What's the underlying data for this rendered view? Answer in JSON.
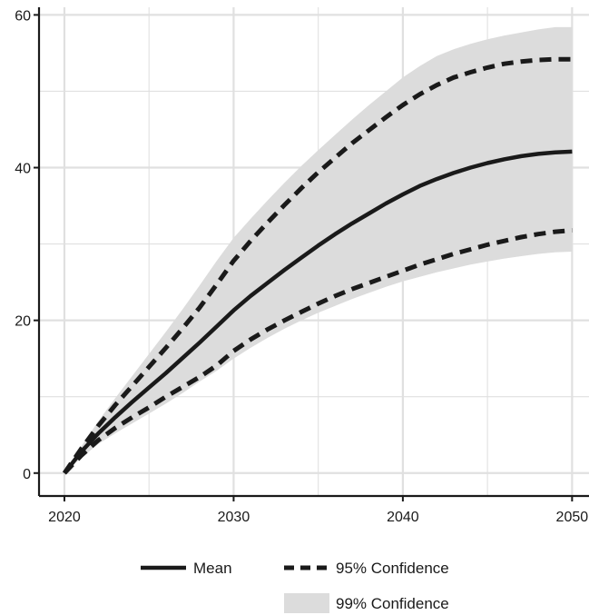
{
  "chart_data": {
    "type": "line",
    "title": "",
    "xlabel": "",
    "ylabel": "",
    "xlim": [
      2018.5,
      2051
    ],
    "ylim": [
      -3,
      61
    ],
    "x_ticks": [
      2020,
      2030,
      2040,
      2050
    ],
    "x_tick_labels": [
      "2020",
      "2030",
      "2040",
      "2050"
    ],
    "y_ticks": [
      0,
      20,
      40,
      60
    ],
    "y_tick_labels": [
      "0",
      "20",
      "40",
      "60"
    ],
    "grid": true,
    "x": [
      2020,
      2021,
      2022,
      2023,
      2024,
      2025,
      2026,
      2027,
      2028,
      2029,
      2030,
      2031,
      2032,
      2033,
      2034,
      2035,
      2036,
      2037,
      2038,
      2039,
      2040,
      2041,
      2042,
      2043,
      2044,
      2045,
      2046,
      2047,
      2048,
      2049,
      2050
    ],
    "series": [
      {
        "name": "Mean",
        "style": "solid",
        "values": [
          0,
          2.8,
          5.2,
          7.3,
          9.3,
          11.2,
          13.1,
          15.1,
          17.1,
          19.2,
          21.3,
          23.2,
          24.9,
          26.6,
          28.2,
          29.8,
          31.3,
          32.7,
          34.0,
          35.3,
          36.5,
          37.6,
          38.5,
          39.3,
          40.0,
          40.6,
          41.1,
          41.5,
          41.8,
          42.0,
          42.1
        ]
      },
      {
        "name": "95% Confidence",
        "style": "dashed",
        "values": [
          0,
          3.2,
          6.2,
          8.9,
          11.4,
          13.9,
          16.4,
          19.0,
          21.7,
          24.7,
          27.8,
          30.4,
          32.8,
          35.1,
          37.3,
          39.4,
          41.3,
          43.2,
          44.9,
          46.6,
          48.2,
          49.6,
          50.8,
          51.8,
          52.5,
          53.1,
          53.6,
          53.9,
          54.1,
          54.2,
          54.2
        ]
      },
      {
        "name": "95% Confidence (lower)",
        "style": "dashed",
        "values": [
          0,
          2.3,
          4.3,
          5.9,
          7.3,
          8.6,
          10.0,
          11.3,
          12.6,
          14.1,
          16.0,
          17.5,
          18.8,
          20.0,
          21.1,
          22.2,
          23.2,
          24.1,
          24.9,
          25.7,
          26.5,
          27.3,
          28.0,
          28.7,
          29.3,
          29.9,
          30.4,
          30.9,
          31.3,
          31.6,
          31.8
        ]
      }
    ],
    "band": {
      "name": "99% Confidence",
      "upper": [
        0,
        3.5,
        6.8,
        9.8,
        12.7,
        15.6,
        18.5,
        21.5,
        24.6,
        27.8,
        30.8,
        33.3,
        35.7,
        38.0,
        40.2,
        42.3,
        44.3,
        46.3,
        48.2,
        50.0,
        51.8,
        53.3,
        54.6,
        55.5,
        56.2,
        56.8,
        57.3,
        57.7,
        58.1,
        58.4,
        58.4
      ],
      "lower": [
        0,
        2.0,
        3.8,
        5.2,
        6.5,
        7.8,
        9.1,
        10.5,
        12.0,
        13.4,
        15.0,
        16.4,
        17.7,
        18.9,
        20.0,
        21.0,
        21.9,
        22.8,
        23.6,
        24.4,
        25.1,
        25.7,
        26.3,
        26.8,
        27.3,
        27.7,
        28.1,
        28.4,
        28.7,
        28.9,
        29.0
      ]
    },
    "legend": {
      "position": "bottom",
      "entries": [
        {
          "label": "Mean",
          "style": "solid"
        },
        {
          "label": "95% Confidence",
          "style": "dashed"
        },
        {
          "label": "99% Confidence",
          "style": "fill"
        }
      ]
    },
    "colors": {
      "line": "#1a1a1a",
      "band": "#dcdcdc",
      "grid": "#e0e0e0",
      "axis": "#1a1a1a"
    }
  }
}
